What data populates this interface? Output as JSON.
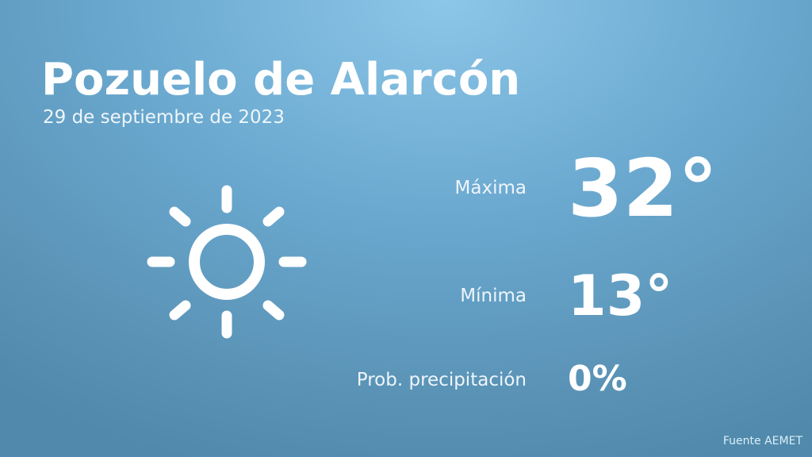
{
  "header": {
    "city": "Pozuelo de Alarcón",
    "date": "29 de septiembre de 2023"
  },
  "weather": {
    "icon": "sun-icon",
    "max_label": "Máxima",
    "max_value": "32°",
    "min_label": "Mínima",
    "min_value": "13°",
    "precip_label": "Prob. precipitación",
    "precip_value": "0%"
  },
  "footer": {
    "source": "Fuente AEMET"
  },
  "colors": {
    "background_top": "#8cc6e8",
    "background_bottom": "#5089ab",
    "text": "#ffffff"
  }
}
